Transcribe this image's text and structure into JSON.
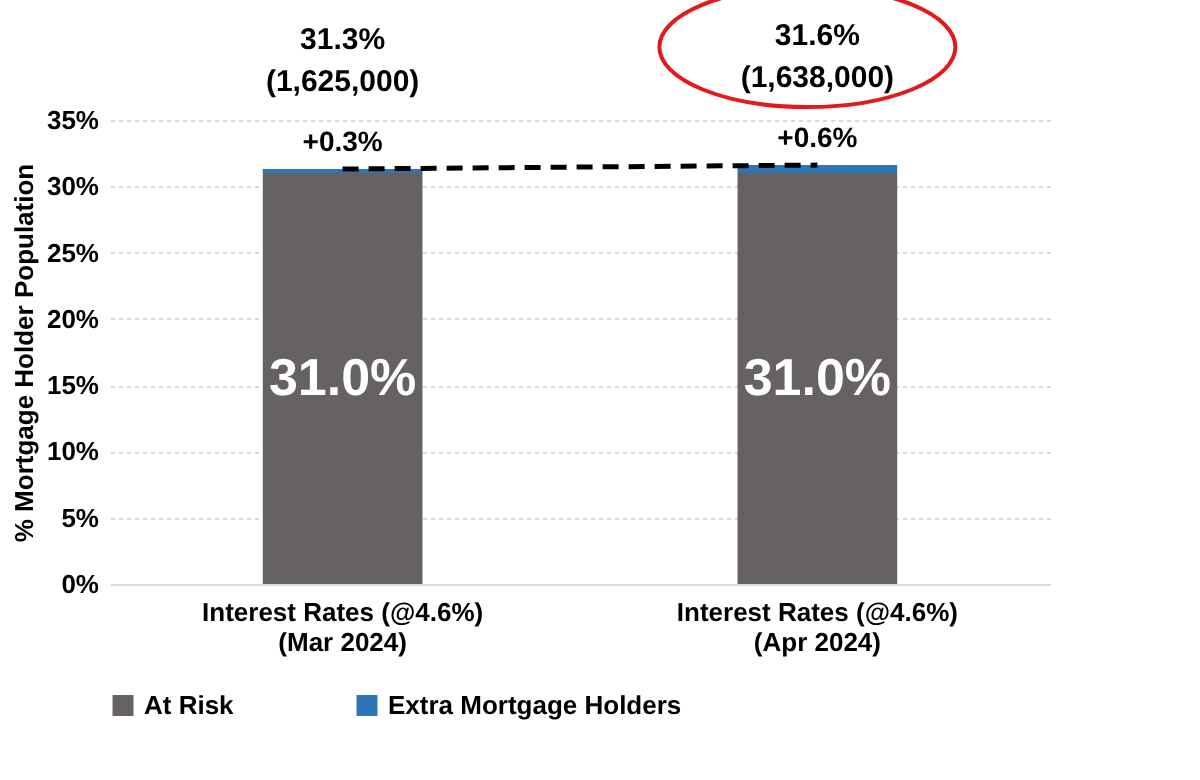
{
  "chart_data": {
    "type": "bar",
    "stacked": true,
    "ylabel": "% Mortgage Holder Population",
    "categories": [
      "Interest Rates (@4.6%)\n(Mar 2024)",
      "Interest Rates (@4.6%)\n(Apr 2024)"
    ],
    "series": [
      {
        "name": "At Risk",
        "color": "#666262",
        "values": [
          31.0,
          31.0
        ],
        "value_labels": [
          "31.0%",
          "31.0%"
        ]
      },
      {
        "name": "Extra Mortgage Holders",
        "color": "#2e75b6",
        "values": [
          0.3,
          0.6
        ],
        "value_labels": [
          "+0.3%",
          "+0.6%"
        ]
      },
      {
        "type": "line",
        "color": "#000000",
        "line_style": "dashed",
        "marker": "none",
        "values": [
          31.3,
          31.6
        ]
      }
    ],
    "totals": [
      "31.3%\n(1,625,000)",
      "31.6%\n(1,638,000)"
    ],
    "ylim": [
      0,
      35
    ],
    "yticks": [
      {
        "value": 0,
        "label": "0%"
      },
      {
        "value": 5,
        "label": "5%"
      },
      {
        "value": 10,
        "label": "10%"
      },
      {
        "value": 15,
        "label": "15%"
      },
      {
        "value": 20,
        "label": "20%"
      },
      {
        "value": 25,
        "label": "25%"
      },
      {
        "value": 30,
        "label": "30%"
      },
      {
        "value": 35,
        "label": "35%"
      }
    ],
    "grid": "y",
    "legend": "bottom"
  }
}
